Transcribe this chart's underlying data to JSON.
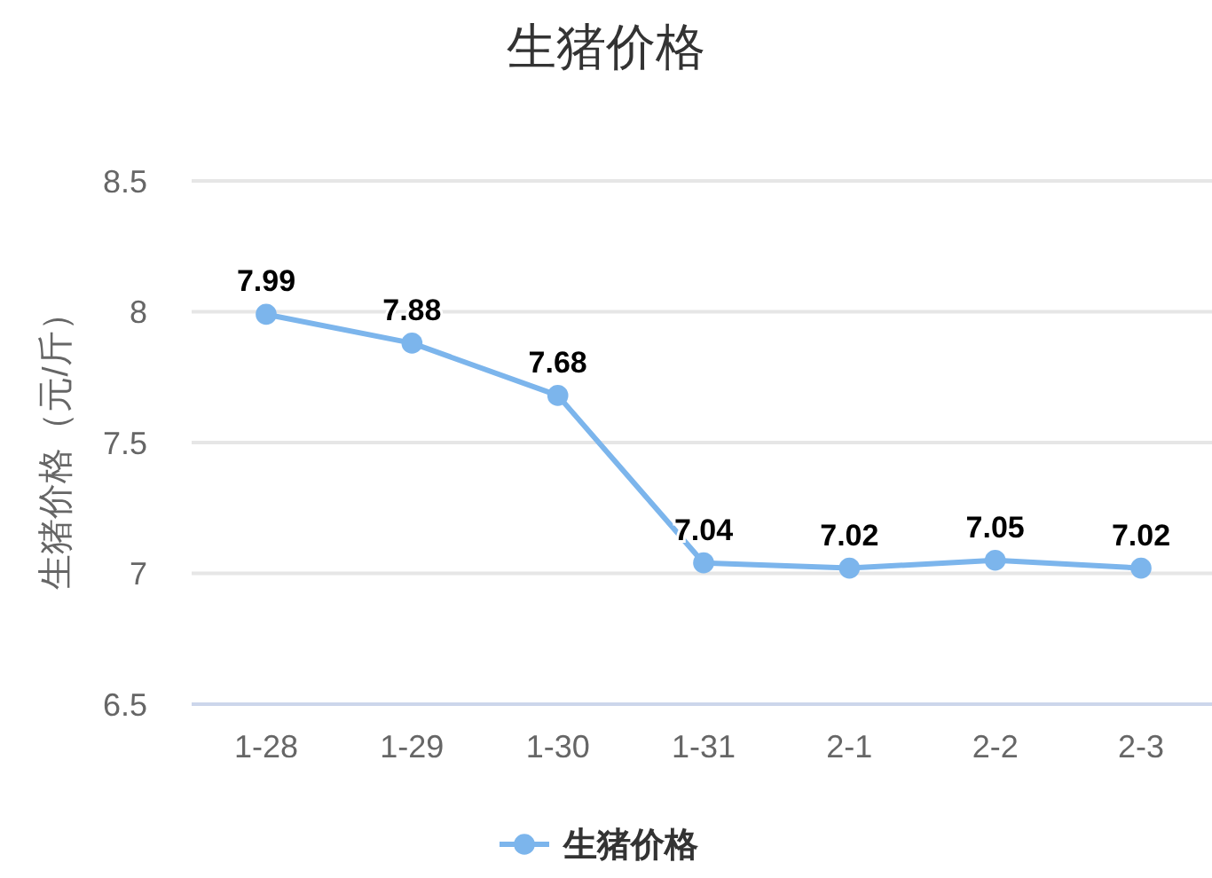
{
  "chart_data": {
    "type": "line",
    "title": "生猪价格",
    "ylabel": "生猪价格（元/斤）",
    "categories": [
      "1-28",
      "1-29",
      "1-30",
      "1-31",
      "2-1",
      "2-2",
      "2-3"
    ],
    "series": [
      {
        "name": "生猪价格",
        "color": "#7cb5ec",
        "values": [
          7.99,
          7.88,
          7.68,
          7.04,
          7.02,
          7.05,
          7.02
        ]
      }
    ],
    "ylim": [
      6.5,
      8.5
    ],
    "yticks": [
      6.5,
      7,
      7.5,
      8,
      8.5
    ],
    "grid": "y",
    "legend": "bottom",
    "marker": "circle",
    "data_labels": true
  }
}
